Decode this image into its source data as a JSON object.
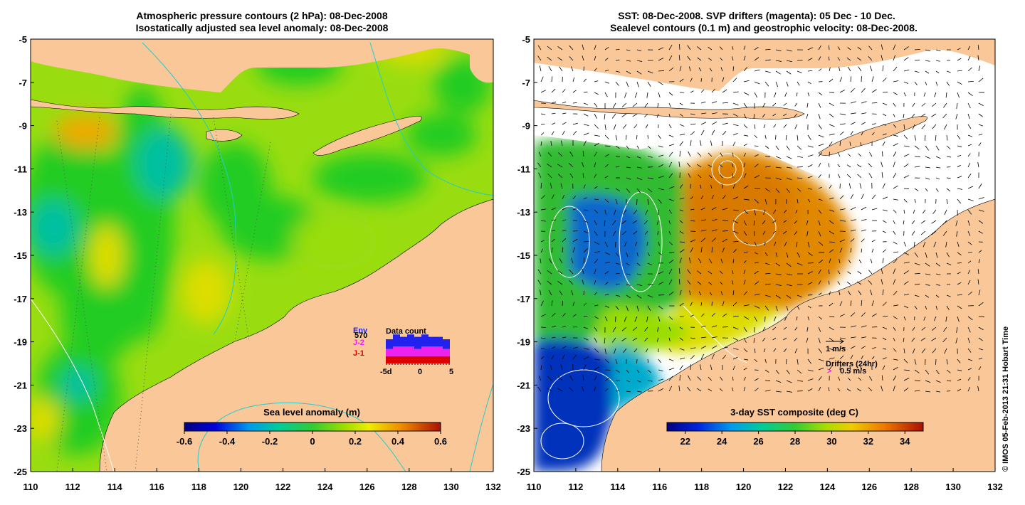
{
  "left_panel": {
    "title_line1": "Atmospheric pressure contours (2 hPa): 08-Dec-2008",
    "title_line2": "Isostatically adjusted sea level anomaly: 08-Dec-2008",
    "colorbar_title": "Sea level anomaly (m)",
    "colorbar_ticks": [
      "-0.6",
      "-0.4",
      "-0.2",
      "0",
      "0.2",
      "0.4",
      "0.6"
    ],
    "inset": {
      "title": "Data count",
      "legend": [
        {
          "label": "Env",
          "color": "#2222ee"
        },
        {
          "label": "570",
          "color": "#000000"
        },
        {
          "label": "J-2",
          "color": "#ee22ee"
        },
        {
          "label": "J-1",
          "color": "#dd0000"
        }
      ],
      "axis_labels": [
        "-5d",
        "0",
        "5"
      ],
      "bar_days": [
        -5,
        -4,
        -3,
        -2,
        -1,
        0,
        1,
        2,
        3
      ],
      "segments": [
        {
          "name": "J-1",
          "color": "#dd0000",
          "values": [
            3,
            3,
            3,
            3,
            3,
            3,
            3,
            3,
            3
          ]
        },
        {
          "name": "J-2",
          "color": "#ee22ee",
          "values": [
            3,
            4,
            4,
            4,
            3,
            4,
            4,
            4,
            3
          ]
        },
        {
          "name": "Env",
          "color": "#2222ee",
          "values": [
            4,
            5,
            4,
            5,
            5,
            5,
            4,
            4,
            4
          ]
        }
      ]
    }
  },
  "right_panel": {
    "title_line1": "SST: 08-Dec-2008. SVP drifters (magenta): 05 Dec - 10 Dec.",
    "title_line2": "Sealevel contours (0.1 m) and geostrophic velocity: 08-Dec-2008.",
    "colorbar_title": "3-day SST composite (deg C)",
    "colorbar_ticks": [
      "22",
      "24",
      "26",
      "28",
      "30",
      "32",
      "34"
    ],
    "vector_scale_label": "1 m/s",
    "drifters_label": "Drifters (24hr)",
    "drifters_symbol": ">",
    "drifters_scale_label": "0.5 m/s"
  },
  "axes": {
    "lat_labels": [
      "-5",
      "-7",
      "-9",
      "-11",
      "-13",
      "-15",
      "-17",
      "-19",
      "-21",
      "-23",
      "-25"
    ],
    "lon_labels": [
      "110",
      "112",
      "114",
      "116",
      "118",
      "120",
      "122",
      "124",
      "126",
      "128",
      "130",
      "132"
    ]
  },
  "credit": "© IMOS 05-Feb-2013 21:31 Hobart Time",
  "colors": {
    "land": "#fac898",
    "sea_green": "#22cc22",
    "sea_lime": "#99dd11",
    "anomaly_orange": "#eeaa00",
    "anomaly_yellow": "#dddd00",
    "sst_orange": "#dd8800",
    "sst_blue": "#1144cc",
    "contour_cyan": "#22cccc"
  }
}
